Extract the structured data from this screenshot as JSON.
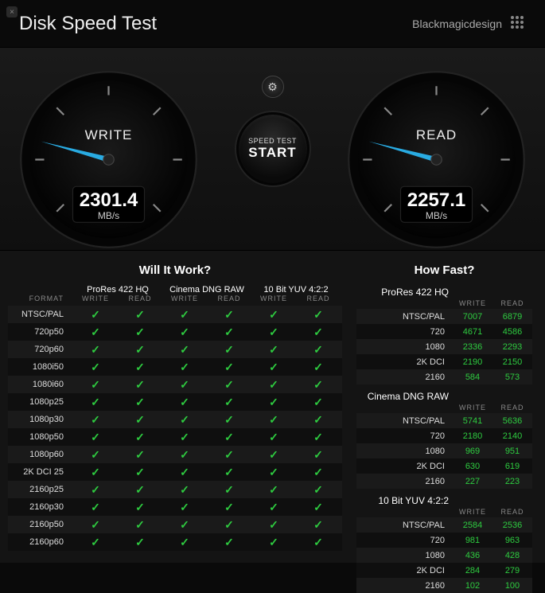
{
  "app": {
    "title": "Disk Speed Test",
    "brand": "Blackmagicdesign"
  },
  "gauges": {
    "write": {
      "label": "WRITE",
      "value": "2301.4",
      "unit": "MB/s",
      "angle": -75
    },
    "read": {
      "label": "READ",
      "value": "2257.1",
      "unit": "MB/s",
      "angle": -75
    }
  },
  "start": {
    "line1": "SPEED TEST",
    "line2": "START"
  },
  "will_it_work": {
    "title": "Will It Work?",
    "format_label": "FORMAT",
    "write_label": "WRITE",
    "read_label": "READ",
    "codecs": [
      "ProRes 422 HQ",
      "Cinema DNG RAW",
      "10 Bit YUV 4:2:2"
    ],
    "formats": [
      "NTSC/PAL",
      "720p50",
      "720p60",
      "1080i50",
      "1080i60",
      "1080p25",
      "1080p30",
      "1080p50",
      "1080p60",
      "2K DCI 25",
      "2160p25",
      "2160p30",
      "2160p50",
      "2160p60"
    ]
  },
  "how_fast": {
    "title": "How Fast?",
    "write_label": "WRITE",
    "read_label": "READ",
    "blocks": [
      {
        "name": "ProRes 422 HQ",
        "rows": [
          {
            "fmt": "NTSC/PAL",
            "w": "7007",
            "r": "6879",
            "wc": "green",
            "rc": "green"
          },
          {
            "fmt": "720",
            "w": "4671",
            "r": "4586",
            "wc": "green",
            "rc": "green"
          },
          {
            "fmt": "1080",
            "w": "2336",
            "r": "2293",
            "wc": "green",
            "rc": "green"
          },
          {
            "fmt": "2K DCI",
            "w": "2190",
            "r": "2150",
            "wc": "green",
            "rc": "green"
          },
          {
            "fmt": "2160",
            "w": "584",
            "r": "573",
            "wc": "green",
            "rc": "green"
          }
        ]
      },
      {
        "name": "Cinema DNG RAW",
        "rows": [
          {
            "fmt": "NTSC/PAL",
            "w": "5741",
            "r": "5636",
            "wc": "green",
            "rc": "green"
          },
          {
            "fmt": "720",
            "w": "2180",
            "r": "2140",
            "wc": "green",
            "rc": "green"
          },
          {
            "fmt": "1080",
            "w": "969",
            "r": "951",
            "wc": "green",
            "rc": "green"
          },
          {
            "fmt": "2K DCI",
            "w": "630",
            "r": "619",
            "wc": "green",
            "rc": "green"
          },
          {
            "fmt": "2160",
            "w": "227",
            "r": "223",
            "wc": "green",
            "rc": "green"
          }
        ]
      },
      {
        "name": "10 Bit YUV 4:2:2",
        "rows": [
          {
            "fmt": "NTSC/PAL",
            "w": "2584",
            "r": "2536",
            "wc": "green",
            "rc": "green"
          },
          {
            "fmt": "720",
            "w": "981",
            "r": "963",
            "wc": "green",
            "rc": "green"
          },
          {
            "fmt": "1080",
            "w": "436",
            "r": "428",
            "wc": "green",
            "rc": "green"
          },
          {
            "fmt": "2K DCI",
            "w": "284",
            "r": "279",
            "wc": "green",
            "rc": "green"
          },
          {
            "fmt": "2160",
            "w": "102",
            "r": "100",
            "wc": "green",
            "rc": "green"
          }
        ]
      }
    ]
  },
  "colors": {
    "gauge_needle": "#29abe2",
    "gauge_face": "#0a0a0a",
    "check_green": "#2ecc40"
  }
}
